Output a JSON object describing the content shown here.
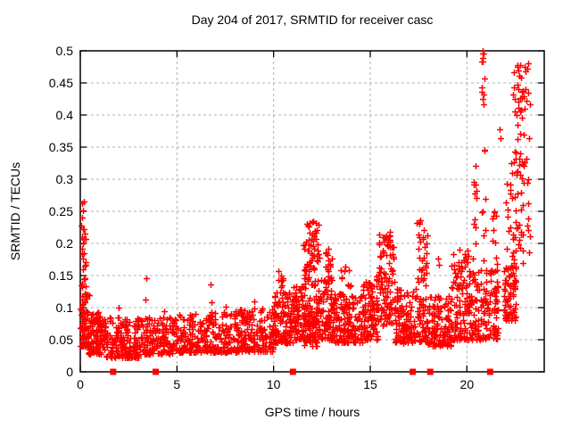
{
  "chart_data": {
    "type": "scatter",
    "title": "Day 204 of 2017, SRMTID for receiver casc",
    "xlabel": "GPS time / hours",
    "ylabel": "SRMTID / TECUs",
    "xlim": [
      0,
      24
    ],
    "ylim": [
      0,
      0.5
    ],
    "xticks": {
      "values": [
        0,
        5,
        10,
        15,
        20
      ],
      "labels": [
        "0",
        "5",
        "10",
        "15",
        "20"
      ]
    },
    "yticks": {
      "values": [
        0,
        0.05,
        0.1,
        0.15,
        0.2,
        0.25,
        0.3,
        0.35,
        0.4,
        0.45,
        0.5
      ],
      "labels": [
        "0",
        "0.05",
        "0.1",
        "0.15",
        "0.2",
        "0.25",
        "0.3",
        "0.35",
        "0.4",
        "0.45",
        "0.5"
      ]
    },
    "grid": {
      "show": true,
      "color": "#b0b0b0",
      "dash": "3,3"
    },
    "axis_color": "#000000",
    "marker_color": "#ff0000",
    "series": [
      {
        "name": "srmtid",
        "marker": "plus",
        "color": "#ff0000",
        "clusters": [
          [
            0.0,
            0.45,
            0.04,
            0.135,
            80,
            1.6
          ],
          [
            0.03,
            0.3,
            0.13,
            0.225,
            16,
            1.2
          ],
          [
            0.05,
            0.2,
            0.22,
            0.266,
            4,
            1.0
          ],
          [
            0.4,
            1.3,
            0.028,
            0.095,
            110,
            1.7
          ],
          [
            1.3,
            3.0,
            0.022,
            0.085,
            170,
            1.7
          ],
          [
            3.0,
            5.0,
            0.028,
            0.085,
            170,
            1.7
          ],
          [
            5.0,
            6.6,
            0.03,
            0.09,
            130,
            1.7
          ],
          [
            6.6,
            8.1,
            0.03,
            0.095,
            130,
            1.7
          ],
          [
            8.1,
            10.0,
            0.032,
            0.1,
            170,
            1.7
          ],
          [
            10.0,
            11.0,
            0.045,
            0.125,
            120,
            1.5
          ],
          [
            10.15,
            10.5,
            0.12,
            0.158,
            8,
            1.0
          ],
          [
            11.0,
            11.6,
            0.05,
            0.135,
            80,
            1.5
          ],
          [
            11.55,
            12.35,
            0.07,
            0.235,
            130,
            1.4
          ],
          [
            11.6,
            12.3,
            0.04,
            0.08,
            40,
            1.2
          ],
          [
            12.35,
            13.1,
            0.05,
            0.15,
            80,
            1.5
          ],
          [
            12.6,
            13.0,
            0.14,
            0.196,
            18,
            1.0
          ],
          [
            13.1,
            14.6,
            0.045,
            0.125,
            150,
            1.6
          ],
          [
            13.3,
            14.0,
            0.12,
            0.165,
            10,
            1.0
          ],
          [
            14.6,
            15.4,
            0.05,
            0.15,
            100,
            1.5
          ],
          [
            15.4,
            16.25,
            0.07,
            0.215,
            100,
            1.3
          ],
          [
            16.25,
            17.35,
            0.045,
            0.13,
            120,
            1.6
          ],
          [
            17.4,
            17.95,
            0.09,
            0.235,
            45,
            1.2
          ],
          [
            17.4,
            18.0,
            0.045,
            0.09,
            35,
            1.4
          ],
          [
            18.0,
            19.2,
            0.04,
            0.12,
            130,
            1.6
          ],
          [
            19.2,
            20.1,
            0.05,
            0.19,
            110,
            1.6
          ],
          [
            20.1,
            21.0,
            0.05,
            0.16,
            90,
            1.5
          ],
          [
            20.3,
            20.55,
            0.17,
            0.33,
            12,
            1.0
          ],
          [
            20.75,
            20.92,
            0.4,
            0.5,
            9,
            1.0
          ],
          [
            20.75,
            20.95,
            0.17,
            0.35,
            8,
            1.0
          ],
          [
            21.0,
            21.6,
            0.05,
            0.16,
            65,
            1.4
          ],
          [
            21.3,
            21.55,
            0.16,
            0.26,
            10,
            1.0
          ],
          [
            21.9,
            22.55,
            0.08,
            0.165,
            70,
            1.3
          ],
          [
            22.0,
            22.9,
            0.16,
            0.345,
            55,
            1.1
          ],
          [
            22.4,
            22.9,
            0.34,
            0.48,
            26,
            1.0
          ],
          [
            22.9,
            23.3,
            0.15,
            0.48,
            20,
            1.0
          ]
        ],
        "points": [
          [
            0.1,
            0.262
          ],
          [
            0.08,
            0.24
          ],
          [
            0.12,
            0.222
          ],
          [
            0.14,
            0.2
          ],
          [
            0.18,
            0.185
          ],
          [
            2.0,
            0.1
          ],
          [
            3.35,
            0.112
          ],
          [
            3.4,
            0.146
          ],
          [
            4.35,
            0.095
          ],
          [
            6.75,
            0.136
          ],
          [
            6.78,
            0.108
          ],
          [
            7.5,
            0.102
          ],
          [
            9.0,
            0.11
          ],
          [
            10.25,
            0.157
          ],
          [
            10.4,
            0.15
          ],
          [
            13.9,
            0.158
          ],
          [
            16.0,
            0.218
          ],
          [
            17.6,
            0.236
          ],
          [
            18.5,
            0.176
          ],
          [
            18.55,
            0.166
          ],
          [
            19.6,
            0.19
          ],
          [
            20.8,
            0.5
          ],
          [
            20.83,
            0.496
          ],
          [
            20.78,
            0.483
          ],
          [
            21.7,
            0.378
          ],
          [
            21.74,
            0.364
          ],
          [
            22.6,
            0.478
          ],
          [
            22.66,
            0.47
          ],
          [
            22.72,
            0.461
          ],
          [
            23.18,
            0.48
          ],
          [
            23.12,
            0.472
          ],
          [
            23.05,
            0.44
          ],
          [
            23.0,
            0.41
          ],
          [
            22.95,
            0.37
          ]
        ]
      },
      {
        "name": "axis-markers",
        "marker": "square",
        "color": "#ff0000",
        "points": [
          [
            1.7,
            0
          ],
          [
            3.9,
            0
          ],
          [
            11.0,
            0
          ],
          [
            17.2,
            0
          ],
          [
            18.1,
            0
          ],
          [
            21.2,
            0
          ]
        ]
      }
    ]
  }
}
